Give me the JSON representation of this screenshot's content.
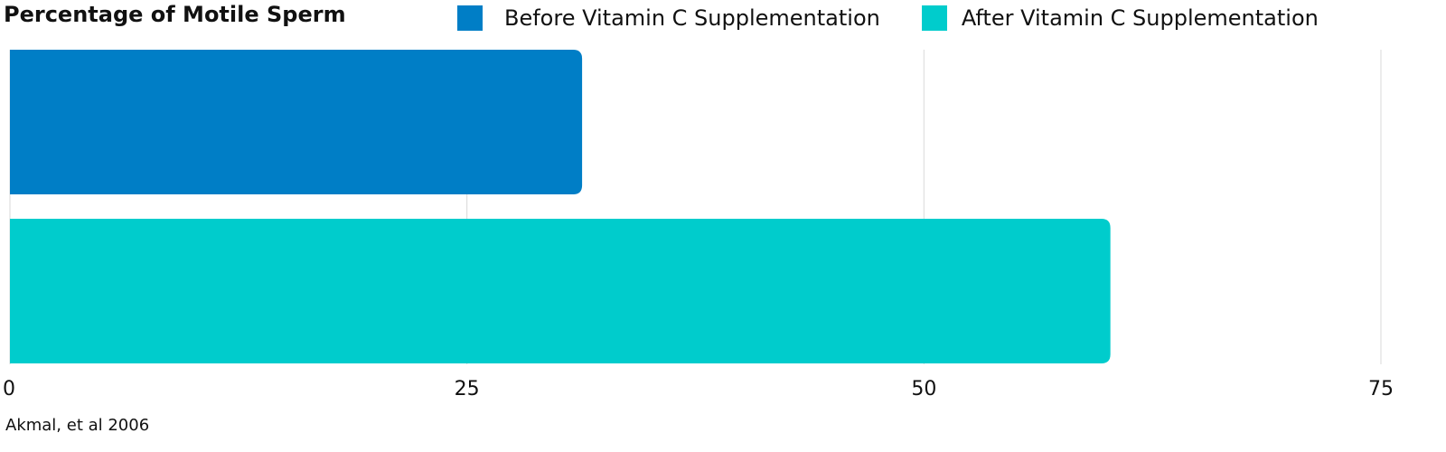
{
  "chart_data": {
    "type": "bar",
    "orientation": "horizontal",
    "title": "Percentage of Motile Sperm",
    "xlabel": "",
    "ylabel": "",
    "xlim": [
      0,
      75
    ],
    "xticks": [
      0,
      25,
      50,
      75
    ],
    "xtick_labels": [
      "0",
      "25",
      "50",
      "75"
    ],
    "grid": "vertical",
    "legend_position": "top-right",
    "series": [
      {
        "name": "Before Vitamin C Supplementation",
        "color": "#007ec6",
        "value": 31.3
      },
      {
        "name": "After Vitamin C Supplementation",
        "color": "#00cccc",
        "value": 60.2
      }
    ]
  },
  "source": "Akmal, et al 2006"
}
